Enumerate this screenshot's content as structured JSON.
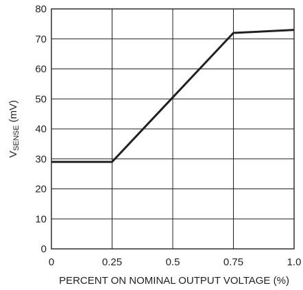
{
  "chart_data": {
    "type": "line",
    "title": "",
    "xlabel": "PERCENT ON NOMINAL OUTPUT VOLTAGE (%)",
    "ylabel": {
      "main": "V",
      "subscript": "SENSE",
      "suffix": " (mV)"
    },
    "xlim": [
      0,
      1.0
    ],
    "ylim": [
      0,
      80
    ],
    "x_ticks": [
      0,
      0.25,
      0.5,
      0.75,
      1.0
    ],
    "x_tick_labels": [
      "0",
      "0.25",
      "0.5",
      "0.75",
      "1.0"
    ],
    "y_ticks": [
      0,
      10,
      20,
      30,
      40,
      50,
      60,
      70,
      80
    ],
    "y_tick_labels": [
      "0",
      "10",
      "20",
      "30",
      "40",
      "50",
      "60",
      "70",
      "80"
    ],
    "grid": true,
    "series": [
      {
        "x": [
          0,
          0.25,
          0.75,
          1.0
        ],
        "y": [
          29,
          29,
          72,
          73
        ]
      }
    ],
    "colors": {
      "line": "#231f20",
      "grid": "#231f20"
    }
  }
}
